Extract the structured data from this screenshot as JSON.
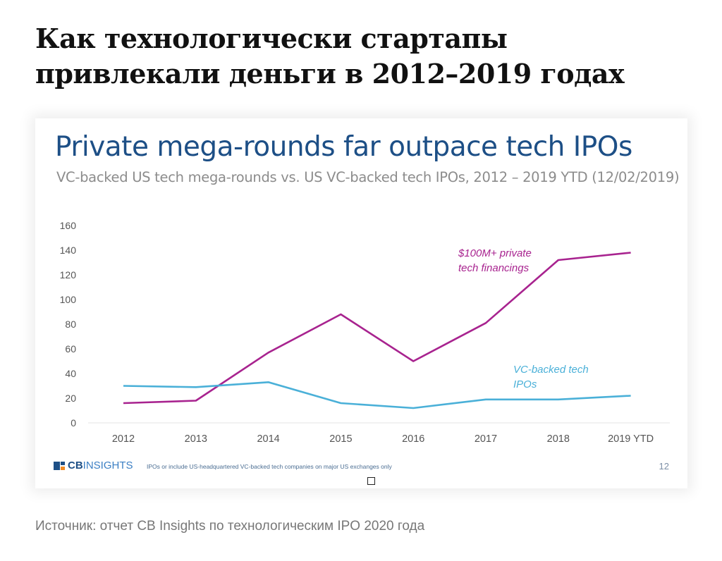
{
  "article": {
    "title": "Как технологически стартапы привлекали деньги в 2012–2019 годах",
    "source": "Источник:  отчет CB Insights по технологическим IPO 2020 года"
  },
  "footer": {
    "logo_bold": "CB",
    "logo_light": "INSIGHTS",
    "note": "IPOs or include US-headquartered VC-backed tech companies on major US exchanges only",
    "page_number": "12"
  },
  "colors": {
    "title": "#1d4f86",
    "mega_rounds": "#a8238f",
    "ipos": "#4ab0d8",
    "axis_text": "#555555",
    "logo_orange": "#f08a24"
  },
  "chart_data": {
    "type": "line",
    "title": "Private mega-rounds far outpace tech IPOs",
    "subtitle": "VC-backed US tech mega-rounds vs. US VC-backed tech IPOs, 2012 – 2019 YTD (12/02/2019)",
    "xlabel": "",
    "ylabel": "",
    "categories": [
      "2012",
      "2013",
      "2014",
      "2015",
      "2016",
      "2017",
      "2018",
      "2019 YTD"
    ],
    "ylim": [
      0,
      160
    ],
    "yticks": [
      0,
      20,
      40,
      60,
      80,
      100,
      120,
      140,
      160
    ],
    "grid": false,
    "series": [
      {
        "name": "$100M+ private tech financings",
        "label_lines": [
          "$100M+ private",
          "tech financings"
        ],
        "color": "#a8238f",
        "values": [
          16,
          18,
          57,
          88,
          50,
          81,
          132,
          138
        ]
      },
      {
        "name": "VC-backed tech IPOs",
        "label_lines": [
          "VC-backed tech",
          "IPOs"
        ],
        "color": "#4ab0d8",
        "values": [
          30,
          29,
          33,
          16,
          12,
          19,
          19,
          22
        ]
      }
    ]
  }
}
